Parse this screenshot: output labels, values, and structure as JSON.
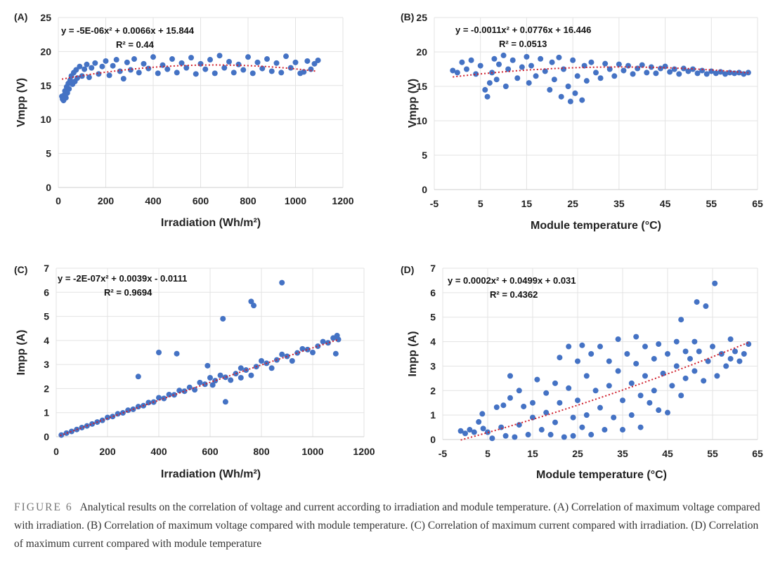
{
  "caption": {
    "label": "FIGURE 6",
    "text": "Analytical results on the correlation of voltage and current according to irradiation and module temperature. (A) Correlation of maximum voltage compared with irradiation. (B) Correlation of maximum voltage compared with module temperature. (C) Correlation of maximum current compared with irradiation. (D) Correlation of maximum current compared with module temperature"
  },
  "colors": {
    "points": "#4472c4",
    "trendline": "#d0212e",
    "grid": "#e3e3e3"
  },
  "chart_data": [
    {
      "type": "scatter",
      "panel": "(A)",
      "grid": true,
      "xlabel": "Irradiation (Wh/m²)",
      "ylabel": "Vmpp (V)",
      "xlim": [
        0,
        1200
      ],
      "ylim": [
        0,
        25
      ],
      "xticks": [
        0,
        200,
        400,
        600,
        800,
        1000,
        1200
      ],
      "yticks": [
        0,
        5,
        10,
        15,
        20,
        25
      ],
      "trendline": {
        "type": "polynomial-2",
        "coefficients": [
          -5e-06,
          0.0066,
          15.844
        ],
        "x_range": [
          15,
          1090
        ],
        "equation": "y = -5E-06x² + 0.0066x + 15.844",
        "r2": "R² = 0.44"
      },
      "points": [
        [
          15,
          13.4
        ],
        [
          18,
          13.0
        ],
        [
          22,
          12.8
        ],
        [
          25,
          13.6
        ],
        [
          28,
          14.2
        ],
        [
          32,
          13.2
        ],
        [
          35,
          14.8
        ],
        [
          38,
          13.9
        ],
        [
          42,
          15.3
        ],
        [
          45,
          14.5
        ],
        [
          50,
          15.8
        ],
        [
          55,
          16.4
        ],
        [
          60,
          15.2
        ],
        [
          65,
          16.9
        ],
        [
          70,
          15.6
        ],
        [
          75,
          17.3
        ],
        [
          80,
          16.1
        ],
        [
          90,
          17.8
        ],
        [
          100,
          16.4
        ],
        [
          110,
          17.4
        ],
        [
          120,
          18.1
        ],
        [
          130,
          16.2
        ],
        [
          140,
          17.6
        ],
        [
          155,
          18.3
        ],
        [
          170,
          16.7
        ],
        [
          185,
          17.8
        ],
        [
          200,
          18.6
        ],
        [
          215,
          16.5
        ],
        [
          230,
          17.9
        ],
        [
          245,
          18.8
        ],
        [
          260,
          17.1
        ],
        [
          275,
          16.0
        ],
        [
          290,
          18.4
        ],
        [
          305,
          17.3
        ],
        [
          320,
          18.9
        ],
        [
          340,
          16.9
        ],
        [
          360,
          18.2
        ],
        [
          380,
          17.5
        ],
        [
          400,
          19.2
        ],
        [
          420,
          16.8
        ],
        [
          440,
          18.0
        ],
        [
          460,
          17.4
        ],
        [
          480,
          18.9
        ],
        [
          500,
          16.9
        ],
        [
          520,
          18.3
        ],
        [
          540,
          17.6
        ],
        [
          560,
          19.1
        ],
        [
          580,
          16.7
        ],
        [
          600,
          18.2
        ],
        [
          620,
          17.4
        ],
        [
          640,
          18.8
        ],
        [
          660,
          16.8
        ],
        [
          680,
          19.4
        ],
        [
          700,
          17.6
        ],
        [
          720,
          18.5
        ],
        [
          740,
          16.9
        ],
        [
          760,
          18.1
        ],
        [
          780,
          17.3
        ],
        [
          800,
          19.2
        ],
        [
          820,
          16.8
        ],
        [
          840,
          18.4
        ],
        [
          860,
          17.5
        ],
        [
          880,
          18.9
        ],
        [
          900,
          17.1
        ],
        [
          920,
          18.3
        ],
        [
          940,
          16.9
        ],
        [
          960,
          19.3
        ],
        [
          980,
          17.6
        ],
        [
          1000,
          18.4
        ],
        [
          1020,
          16.8
        ],
        [
          1035,
          17.0
        ],
        [
          1050,
          18.6
        ],
        [
          1065,
          17.4
        ],
        [
          1080,
          18.2
        ],
        [
          1095,
          18.7
        ]
      ]
    },
    {
      "type": "scatter",
      "panel": "(B)",
      "grid": true,
      "xlabel": "Module temperature (°C)",
      "ylabel": "Vmpp (V)",
      "xlim": [
        -5,
        65
      ],
      "ylim": [
        0,
        25
      ],
      "xticks": [
        -5,
        5,
        15,
        25,
        35,
        45,
        55,
        65
      ],
      "yticks": [
        0,
        5,
        10,
        15,
        20,
        25
      ],
      "trendline": {
        "type": "polynomial-2",
        "coefficients": [
          -0.0011,
          0.0776,
          16.446
        ],
        "x_range": [
          -1,
          63
        ],
        "equation": "y = -0.0011x² + 0.0776x + 16.446",
        "r2": "R² = 0.0513"
      },
      "points": [
        [
          -1,
          17.3
        ],
        [
          0,
          17.0
        ],
        [
          1,
          18.5
        ],
        [
          2,
          17.5
        ],
        [
          3,
          18.8
        ],
        [
          4,
          16.8
        ],
        [
          5,
          18.0
        ],
        [
          6,
          14.5
        ],
        [
          6.5,
          13.5
        ],
        [
          7,
          15.5
        ],
        [
          7.5,
          17.0
        ],
        [
          8,
          19.0
        ],
        [
          8.5,
          16.0
        ],
        [
          9,
          18.2
        ],
        [
          10,
          19.5
        ],
        [
          10.5,
          15.0
        ],
        [
          11,
          17.5
        ],
        [
          12,
          18.8
        ],
        [
          13,
          16.2
        ],
        [
          14,
          17.8
        ],
        [
          15,
          19.3
        ],
        [
          15.5,
          15.5
        ],
        [
          16,
          18.0
        ],
        [
          17,
          16.5
        ],
        [
          18,
          19.0
        ],
        [
          19,
          17.2
        ],
        [
          20,
          14.5
        ],
        [
          20.5,
          18.5
        ],
        [
          21,
          16.0
        ],
        [
          22,
          19.2
        ],
        [
          22.5,
          13.5
        ],
        [
          23,
          17.5
        ],
        [
          24,
          15.0
        ],
        [
          24.5,
          12.8
        ],
        [
          25,
          18.8
        ],
        [
          25.5,
          14.0
        ],
        [
          26,
          16.5
        ],
        [
          27,
          13.0
        ],
        [
          27.5,
          18.0
        ],
        [
          28,
          15.8
        ],
        [
          29,
          18.5
        ],
        [
          30,
          17.0
        ],
        [
          31,
          16.2
        ],
        [
          32,
          18.3
        ],
        [
          33,
          17.5
        ],
        [
          34,
          16.5
        ],
        [
          35,
          18.2
        ],
        [
          36,
          17.3
        ],
        [
          37,
          18.0
        ],
        [
          38,
          16.8
        ],
        [
          39,
          17.6
        ],
        [
          40,
          18.1
        ],
        [
          41,
          17.0
        ],
        [
          42,
          17.8
        ],
        [
          43,
          16.9
        ],
        [
          44,
          17.6
        ],
        [
          45,
          17.9
        ],
        [
          46,
          17.1
        ],
        [
          47,
          17.5
        ],
        [
          48,
          16.8
        ],
        [
          49,
          17.6
        ],
        [
          50,
          17.2
        ],
        [
          51,
          17.5
        ],
        [
          52,
          16.9
        ],
        [
          53,
          17.3
        ],
        [
          54,
          16.8
        ],
        [
          55,
          17.2
        ],
        [
          56,
          16.9
        ],
        [
          57,
          17.1
        ],
        [
          58,
          16.8
        ],
        [
          59,
          17.0
        ],
        [
          60,
          16.9
        ],
        [
          61,
          17.0
        ],
        [
          62,
          16.8
        ],
        [
          63,
          17.0
        ]
      ]
    },
    {
      "type": "scatter",
      "panel": "(C)",
      "grid": true,
      "xlabel": "Irradiation (Wh/m²)",
      "ylabel": "Impp (A)",
      "xlim": [
        0,
        1200
      ],
      "ylim": [
        0,
        7
      ],
      "xticks": [
        0,
        200,
        400,
        600,
        800,
        1000,
        1200
      ],
      "yticks": [
        0,
        1,
        2,
        3,
        4,
        5,
        6,
        7
      ],
      "trendline": {
        "type": "polynomial-2",
        "coefficients": [
          -2e-07,
          0.0039,
          -0.0111
        ],
        "x_range": [
          15,
          1100
        ],
        "equation": "y = -2E-07x² + 0.0039x - 0.0111",
        "r2": "R² = 0.9694"
      },
      "points": [
        [
          20,
          0.07
        ],
        [
          40,
          0.15
        ],
        [
          60,
          0.22
        ],
        [
          80,
          0.3
        ],
        [
          100,
          0.38
        ],
        [
          120,
          0.45
        ],
        [
          140,
          0.53
        ],
        [
          160,
          0.61
        ],
        [
          180,
          0.68
        ],
        [
          200,
          0.8
        ],
        [
          220,
          0.84
        ],
        [
          240,
          0.95
        ],
        [
          260,
          0.99
        ],
        [
          280,
          1.1
        ],
        [
          300,
          1.14
        ],
        [
          320,
          1.25
        ],
        [
          340,
          1.29
        ],
        [
          360,
          1.42
        ],
        [
          380,
          1.44
        ],
        [
          400,
          1.62
        ],
        [
          420,
          1.59
        ],
        [
          440,
          1.75
        ],
        [
          460,
          1.74
        ],
        [
          480,
          1.92
        ],
        [
          500,
          1.89
        ],
        [
          520,
          2.05
        ],
        [
          540,
          1.95
        ],
        [
          560,
          2.25
        ],
        [
          580,
          2.18
        ],
        [
          600,
          2.45
        ],
        [
          610,
          2.15
        ],
        [
          620,
          2.33
        ],
        [
          640,
          2.55
        ],
        [
          660,
          2.47
        ],
        [
          680,
          2.35
        ],
        [
          700,
          2.62
        ],
        [
          720,
          2.85
        ],
        [
          740,
          2.77
        ],
        [
          760,
          2.55
        ],
        [
          780,
          2.91
        ],
        [
          800,
          3.15
        ],
        [
          820,
          3.05
        ],
        [
          840,
          2.85
        ],
        [
          860,
          3.19
        ],
        [
          880,
          3.42
        ],
        [
          900,
          3.34
        ],
        [
          920,
          3.15
        ],
        [
          940,
          3.48
        ],
        [
          960,
          3.65
        ],
        [
          980,
          3.62
        ],
        [
          1000,
          3.5
        ],
        [
          1020,
          3.76
        ],
        [
          1040,
          3.95
        ],
        [
          1060,
          3.9
        ],
        [
          1080,
          4.1
        ],
        [
          1100,
          4.04
        ],
        [
          1095,
          4.2
        ],
        [
          320,
          2.5
        ],
        [
          400,
          3.5
        ],
        [
          470,
          3.45
        ],
        [
          650,
          4.9
        ],
        [
          760,
          5.62
        ],
        [
          770,
          5.45
        ],
        [
          880,
          6.4
        ],
        [
          660,
          1.45
        ],
        [
          1090,
          3.45
        ],
        [
          590,
          2.95
        ],
        [
          720,
          2.45
        ]
      ]
    },
    {
      "type": "scatter",
      "panel": "(D)",
      "grid": true,
      "xlabel": "Module temperature (°C)",
      "ylabel": "Impp (A)",
      "xlim": [
        -5,
        65
      ],
      "ylim": [
        0,
        7
      ],
      "xticks": [
        -5,
        5,
        15,
        25,
        35,
        45,
        55,
        65
      ],
      "yticks": [
        0,
        1,
        2,
        3,
        4,
        5,
        6,
        7
      ],
      "trendline": {
        "type": "polynomial-2",
        "coefficients": [
          0.0002,
          0.0499,
          0.031
        ],
        "x_range": [
          -1,
          63
        ],
        "equation": "y = 0.0002x² + 0.0499x + 0.031",
        "r2": "R² = 0.4362"
      },
      "points": [
        [
          -1,
          0.35
        ],
        [
          0,
          0.25
        ],
        [
          1,
          0.4
        ],
        [
          2,
          0.3
        ],
        [
          3,
          0.72
        ],
        [
          3.8,
          1.05
        ],
        [
          4,
          0.45
        ],
        [
          5,
          0.3
        ],
        [
          6,
          0.05
        ],
        [
          7,
          1.32
        ],
        [
          8,
          0.5
        ],
        [
          8.5,
          1.4
        ],
        [
          9,
          0.15
        ],
        [
          10,
          2.6
        ],
        [
          10,
          1.7
        ],
        [
          11,
          0.1
        ],
        [
          12,
          2.0
        ],
        [
          12,
          0.6
        ],
        [
          13,
          1.35
        ],
        [
          14,
          0.2
        ],
        [
          15,
          1.5
        ],
        [
          15,
          0.9
        ],
        [
          16,
          2.45
        ],
        [
          17,
          0.4
        ],
        [
          18,
          1.9
        ],
        [
          18,
          1.1
        ],
        [
          19,
          0.2
        ],
        [
          20,
          2.3
        ],
        [
          20,
          0.7
        ],
        [
          21,
          3.35
        ],
        [
          21,
          1.5
        ],
        [
          22,
          0.1
        ],
        [
          23,
          3.8
        ],
        [
          23,
          2.1
        ],
        [
          24,
          0.9
        ],
        [
          24,
          0.15
        ],
        [
          25,
          3.2
        ],
        [
          25,
          1.6
        ],
        [
          26,
          3.85
        ],
        [
          26,
          0.5
        ],
        [
          27,
          2.6
        ],
        [
          27,
          1.0
        ],
        [
          28,
          3.5
        ],
        [
          28,
          0.2
        ],
        [
          29,
          2.0
        ],
        [
          30,
          3.8
        ],
        [
          30,
          1.3
        ],
        [
          31,
          0.4
        ],
        [
          32,
          3.2
        ],
        [
          32,
          2.2
        ],
        [
          33,
          0.9
        ],
        [
          34,
          4.1
        ],
        [
          34,
          2.8
        ],
        [
          35,
          1.6
        ],
        [
          35,
          0.4
        ],
        [
          36,
          3.5
        ],
        [
          37,
          2.3
        ],
        [
          37,
          1.0
        ],
        [
          38,
          4.2
        ],
        [
          38,
          3.1
        ],
        [
          39,
          1.8
        ],
        [
          39,
          0.5
        ],
        [
          40,
          3.8
        ],
        [
          40,
          2.6
        ],
        [
          41,
          1.5
        ],
        [
          42,
          3.3
        ],
        [
          42,
          2.0
        ],
        [
          43,
          3.9
        ],
        [
          43,
          1.2
        ],
        [
          44,
          2.7
        ],
        [
          45,
          3.5
        ],
        [
          45,
          1.1
        ],
        [
          46,
          2.2
        ],
        [
          47,
          4.0
        ],
        [
          47,
          3.0
        ],
        [
          48,
          1.8
        ],
        [
          48,
          4.9
        ],
        [
          49,
          3.6
        ],
        [
          49,
          2.5
        ],
        [
          50,
          3.3
        ],
        [
          51,
          4.0
        ],
        [
          51,
          2.8
        ],
        [
          51.5,
          5.62
        ],
        [
          52,
          3.6
        ],
        [
          53,
          2.4
        ],
        [
          53.5,
          5.45
        ],
        [
          54,
          3.2
        ],
        [
          55,
          3.8
        ],
        [
          55.5,
          6.38
        ],
        [
          56,
          2.6
        ],
        [
          57,
          3.5
        ],
        [
          58,
          3.0
        ],
        [
          59,
          4.1
        ],
        [
          59,
          3.3
        ],
        [
          60,
          3.6
        ],
        [
          61,
          3.2
        ],
        [
          62,
          3.5
        ],
        [
          63,
          3.9
        ]
      ]
    }
  ]
}
